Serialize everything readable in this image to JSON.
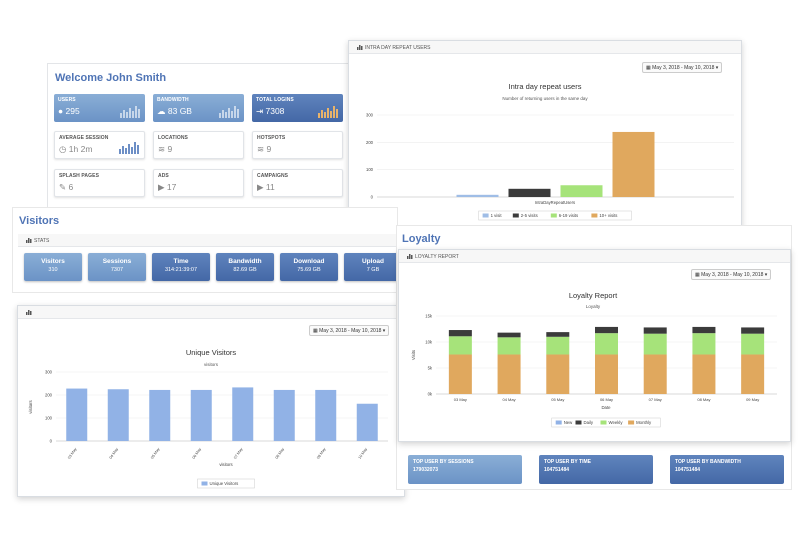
{
  "welcome": {
    "title": "Welcome John Smith",
    "tiles": [
      {
        "label": "USERS",
        "value": "295",
        "icon": "user-icon",
        "style": "blue"
      },
      {
        "label": "BANDWIDTH",
        "value": "83 GB",
        "icon": "cloud-icon",
        "style": "blue"
      },
      {
        "label": "TOTAL LOGINS",
        "value": "7308",
        "icon": "login-icon",
        "style": "dblue"
      },
      {
        "label": "AVERAGE SESSION",
        "value": "1h 2m",
        "icon": "clock-icon",
        "style": "white"
      },
      {
        "label": "LOCATIONS",
        "value": "9",
        "icon": "wifi-icon",
        "style": "white"
      },
      {
        "label": "HOTSPOTS",
        "value": "9",
        "icon": "wifi-icon",
        "style": "white"
      },
      {
        "label": "SPLASH PAGES",
        "value": "6",
        "icon": "edit-icon",
        "style": "white"
      },
      {
        "label": "ADS",
        "value": "17",
        "icon": "play-icon",
        "style": "white"
      },
      {
        "label": "CAMPAIGNS",
        "value": "11",
        "icon": "play-icon",
        "style": "white"
      }
    ]
  },
  "intraday": {
    "header": "INTRA DAY REPEAT USERS",
    "date_range": "May 3, 2018 - May 10, 2018",
    "chart_data": {
      "type": "bar",
      "title": "Intra day repeat users",
      "subtitle": "Number of returning users in the same day",
      "categories": [
        "IntraDayRepeatUsers"
      ],
      "series": [
        {
          "name": "1 visit",
          "values": [
            8
          ],
          "color": "#9fbde6"
        },
        {
          "name": "2-5 visits",
          "values": [
            30
          ],
          "color": "#3b3b3b"
        },
        {
          "name": "6-19 visits",
          "values": [
            43
          ],
          "color": "#a6e37a"
        },
        {
          "name": "10+ visits",
          "values": [
            238
          ],
          "color": "#e0a85e"
        }
      ],
      "yticks": [
        "0",
        "100",
        "200",
        "300"
      ],
      "ylim": [
        0,
        300
      ]
    }
  },
  "visitors": {
    "title": "Visitors",
    "stats_header": "STATS",
    "stats": [
      {
        "label": "Visitors",
        "value": "310",
        "style": "blue"
      },
      {
        "label": "Sessions",
        "value": "7307",
        "style": "blue"
      },
      {
        "label": "Time",
        "value": "314:21:39:07",
        "style": "dblue"
      },
      {
        "label": "Bandwidth",
        "value": "82.69 GB",
        "style": "dblue"
      },
      {
        "label": "Download",
        "value": "75.69 GB",
        "style": "dblue"
      },
      {
        "label": "Upload",
        "value": "7 GB",
        "style": "dblue"
      }
    ],
    "date_range": "May 3, 2018 - May 10, 2018",
    "chart_data": {
      "type": "bar",
      "title": "Unique Visitors",
      "subtitle": "visitors",
      "xlabel": "visitors",
      "ylabel": "visitors",
      "categories": [
        "03 May",
        "04 May",
        "05 May",
        "06 May",
        "07 May",
        "08 May",
        "09 May",
        "10 May"
      ],
      "series": [
        {
          "name": "Unique Visitors",
          "values": [
            228,
            225,
            222,
            222,
            233,
            222,
            222,
            162
          ],
          "color": "#91b2e6"
        }
      ],
      "yticks": [
        "0",
        "100",
        "200",
        "300"
      ],
      "ylim": [
        0,
        300
      ]
    }
  },
  "loyalty": {
    "title": "Loyalty",
    "header": "LOYALTY REPORT",
    "date_range": "May 3, 2018 - May 10, 2018",
    "chart_data": {
      "type": "bar",
      "title": "Loyalty Report",
      "subtitle": "Loyalty",
      "xlabel": "Date",
      "ylabel": "Visits",
      "categories": [
        "03 May",
        "04 May",
        "05 May",
        "06 May",
        "07 May",
        "08 May",
        "09 May"
      ],
      "series": [
        {
          "name": "New",
          "values": [
            0,
            0,
            0,
            0,
            0,
            0,
            0
          ],
          "color": "#91b2e6"
        },
        {
          "name": "Monthly",
          "values": [
            7600,
            7600,
            7600,
            7600,
            7600,
            7600,
            7600
          ],
          "color": "#e0a85e"
        },
        {
          "name": "Weekly",
          "values": [
            3500,
            3300,
            3400,
            4100,
            4000,
            4100,
            4000
          ],
          "color": "#a6e37a"
        },
        {
          "name": "Daily",
          "values": [
            1200,
            900,
            900,
            1200,
            1200,
            1200,
            1200
          ],
          "color": "#3b3b3b"
        }
      ],
      "legend": [
        "New",
        "Daily",
        "Weekly",
        "Monthly"
      ],
      "yticks": [
        "0k",
        "5k",
        "10k",
        "15k"
      ],
      "ylim": [
        0,
        15000
      ]
    }
  },
  "top_users": [
    {
      "label": "TOP USER BY SESSIONS",
      "value": "179032073",
      "style": "blue"
    },
    {
      "label": "TOP USER BY TIME",
      "value": "104751484",
      "style": "dblue"
    },
    {
      "label": "TOP USER BY BANDWIDTH",
      "value": "104751484",
      "style": "dblue"
    }
  ]
}
